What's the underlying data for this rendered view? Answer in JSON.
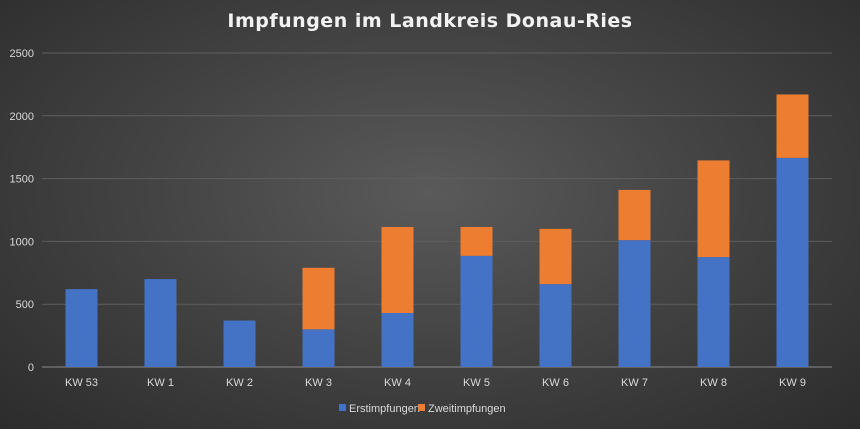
{
  "chart_data": {
    "type": "bar",
    "stacked": true,
    "title": "Impfungen im Landkreis Donau-Ries",
    "categories": [
      "KW 53",
      "KW 1",
      "KW 2",
      "KW 3",
      "KW 4",
      "KW 5",
      "KW 6",
      "KW 7",
      "KW 8",
      "KW 9"
    ],
    "series": [
      {
        "name": "Erstimpfungen",
        "color": "#4472c4",
        "values": [
          620,
          700,
          370,
          300,
          430,
          885,
          660,
          1010,
          875,
          1665
        ]
      },
      {
        "name": "Zweitimpfungen",
        "color": "#ed7d31",
        "values": [
          0,
          0,
          0,
          490,
          685,
          230,
          440,
          400,
          770,
          505
        ]
      }
    ],
    "yticks": [
      0,
      500,
      1000,
      1500,
      2000,
      2500
    ],
    "ylim": [
      0,
      2500
    ],
    "grid": true,
    "legend": "bottom"
  }
}
